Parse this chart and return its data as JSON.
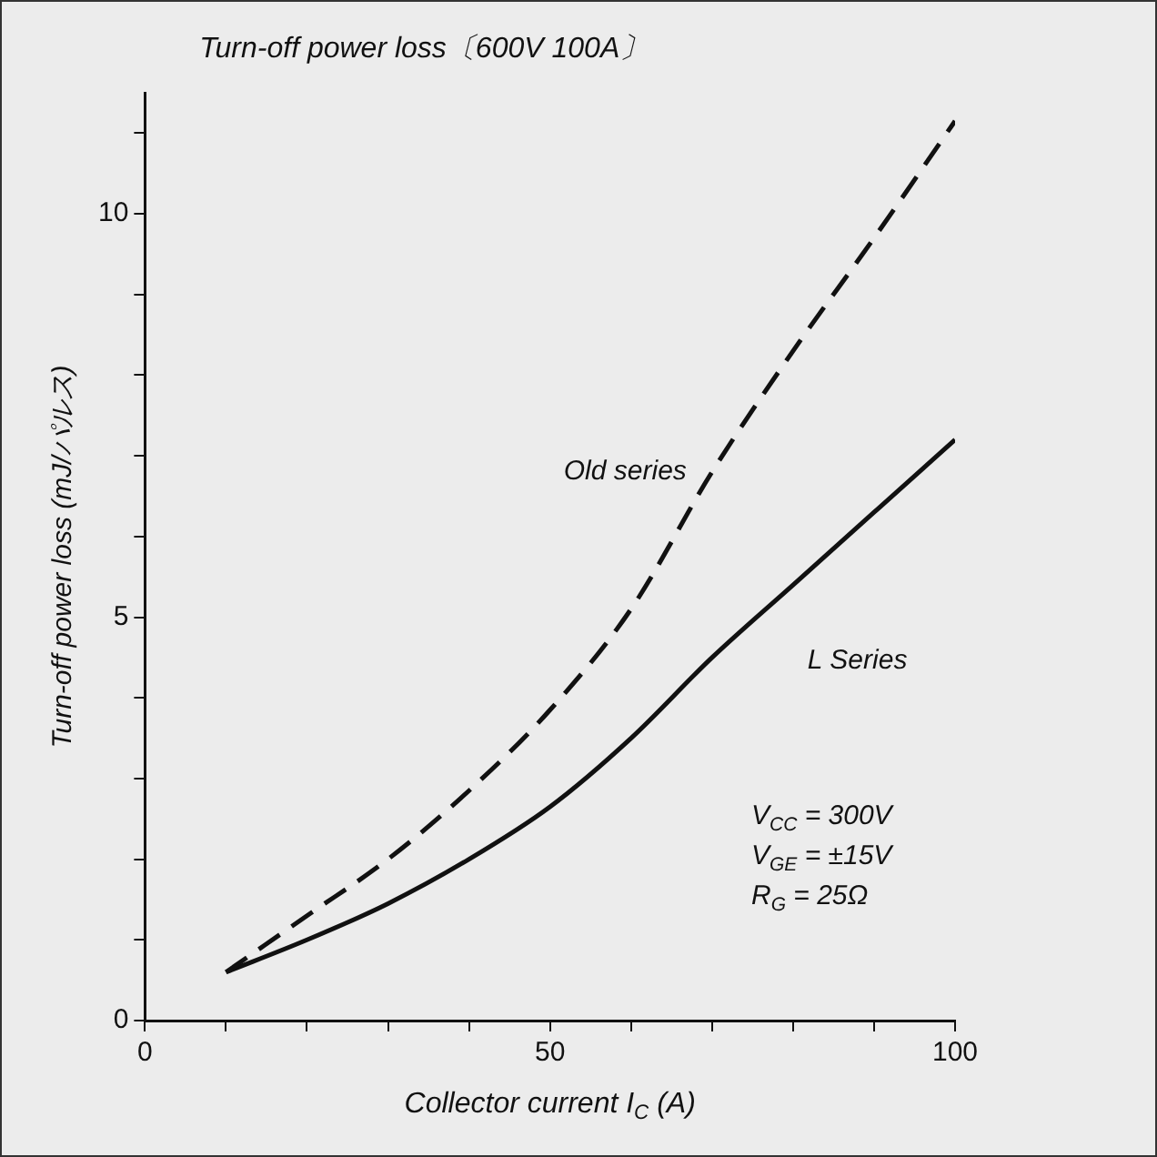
{
  "chart_data": {
    "type": "line",
    "title": "Turn-off power loss〔600V 100A〕",
    "xlabel": "Collector current I$_{C}$ (A)",
    "ylabel": "Turn-off power loss (mJ/パルス)",
    "x": [
      10,
      20,
      30,
      40,
      50,
      60,
      70,
      80,
      90,
      100
    ],
    "series": [
      {
        "name": "Old series",
        "color": "#111111",
        "line_style": "dashed",
        "values": [
          0.6,
          1.3,
          2.0,
          2.85,
          3.85,
          5.1,
          6.8,
          8.3,
          9.7,
          11.15
        ]
      },
      {
        "name": "L Series",
        "color": "#111111",
        "line_style": "solid",
        "values": [
          0.6,
          1.0,
          1.45,
          2.0,
          2.65,
          3.5,
          4.5,
          5.4,
          6.3,
          7.2
        ]
      }
    ],
    "xlim": [
      0,
      100
    ],
    "xticks": [
      0,
      {
        "value": 10,
        "label": null
      },
      {
        "value": 20,
        "label": null
      },
      {
        "value": 30,
        "label": null
      },
      {
        "value": 40,
        "label": null
      },
      50,
      {
        "value": 60,
        "label": null
      },
      {
        "value": 70,
        "label": null
      },
      {
        "value": 80,
        "label": null
      },
      {
        "value": 90,
        "label": null
      },
      100
    ],
    "ylim": [
      0,
      11.5
    ],
    "yticks": [
      0,
      {
        "value": 1,
        "label": null
      },
      {
        "value": 2,
        "label": null
      },
      {
        "value": 3,
        "label": null
      },
      {
        "value": 4,
        "label": null
      },
      5,
      {
        "value": 6,
        "label": null
      },
      {
        "value": 7,
        "label": null
      },
      {
        "value": 8,
        "label": null
      },
      {
        "value": 9,
        "label": null
      },
      10,
      {
        "value": 11,
        "label": null
      }
    ],
    "annotations": [
      "V$_{CC}$ = 300V",
      "V$_{GE}$ = ±15V",
      "R$_{G}$ = 25Ω"
    ],
    "grid": false,
    "legend": false,
    "marker": "none"
  }
}
